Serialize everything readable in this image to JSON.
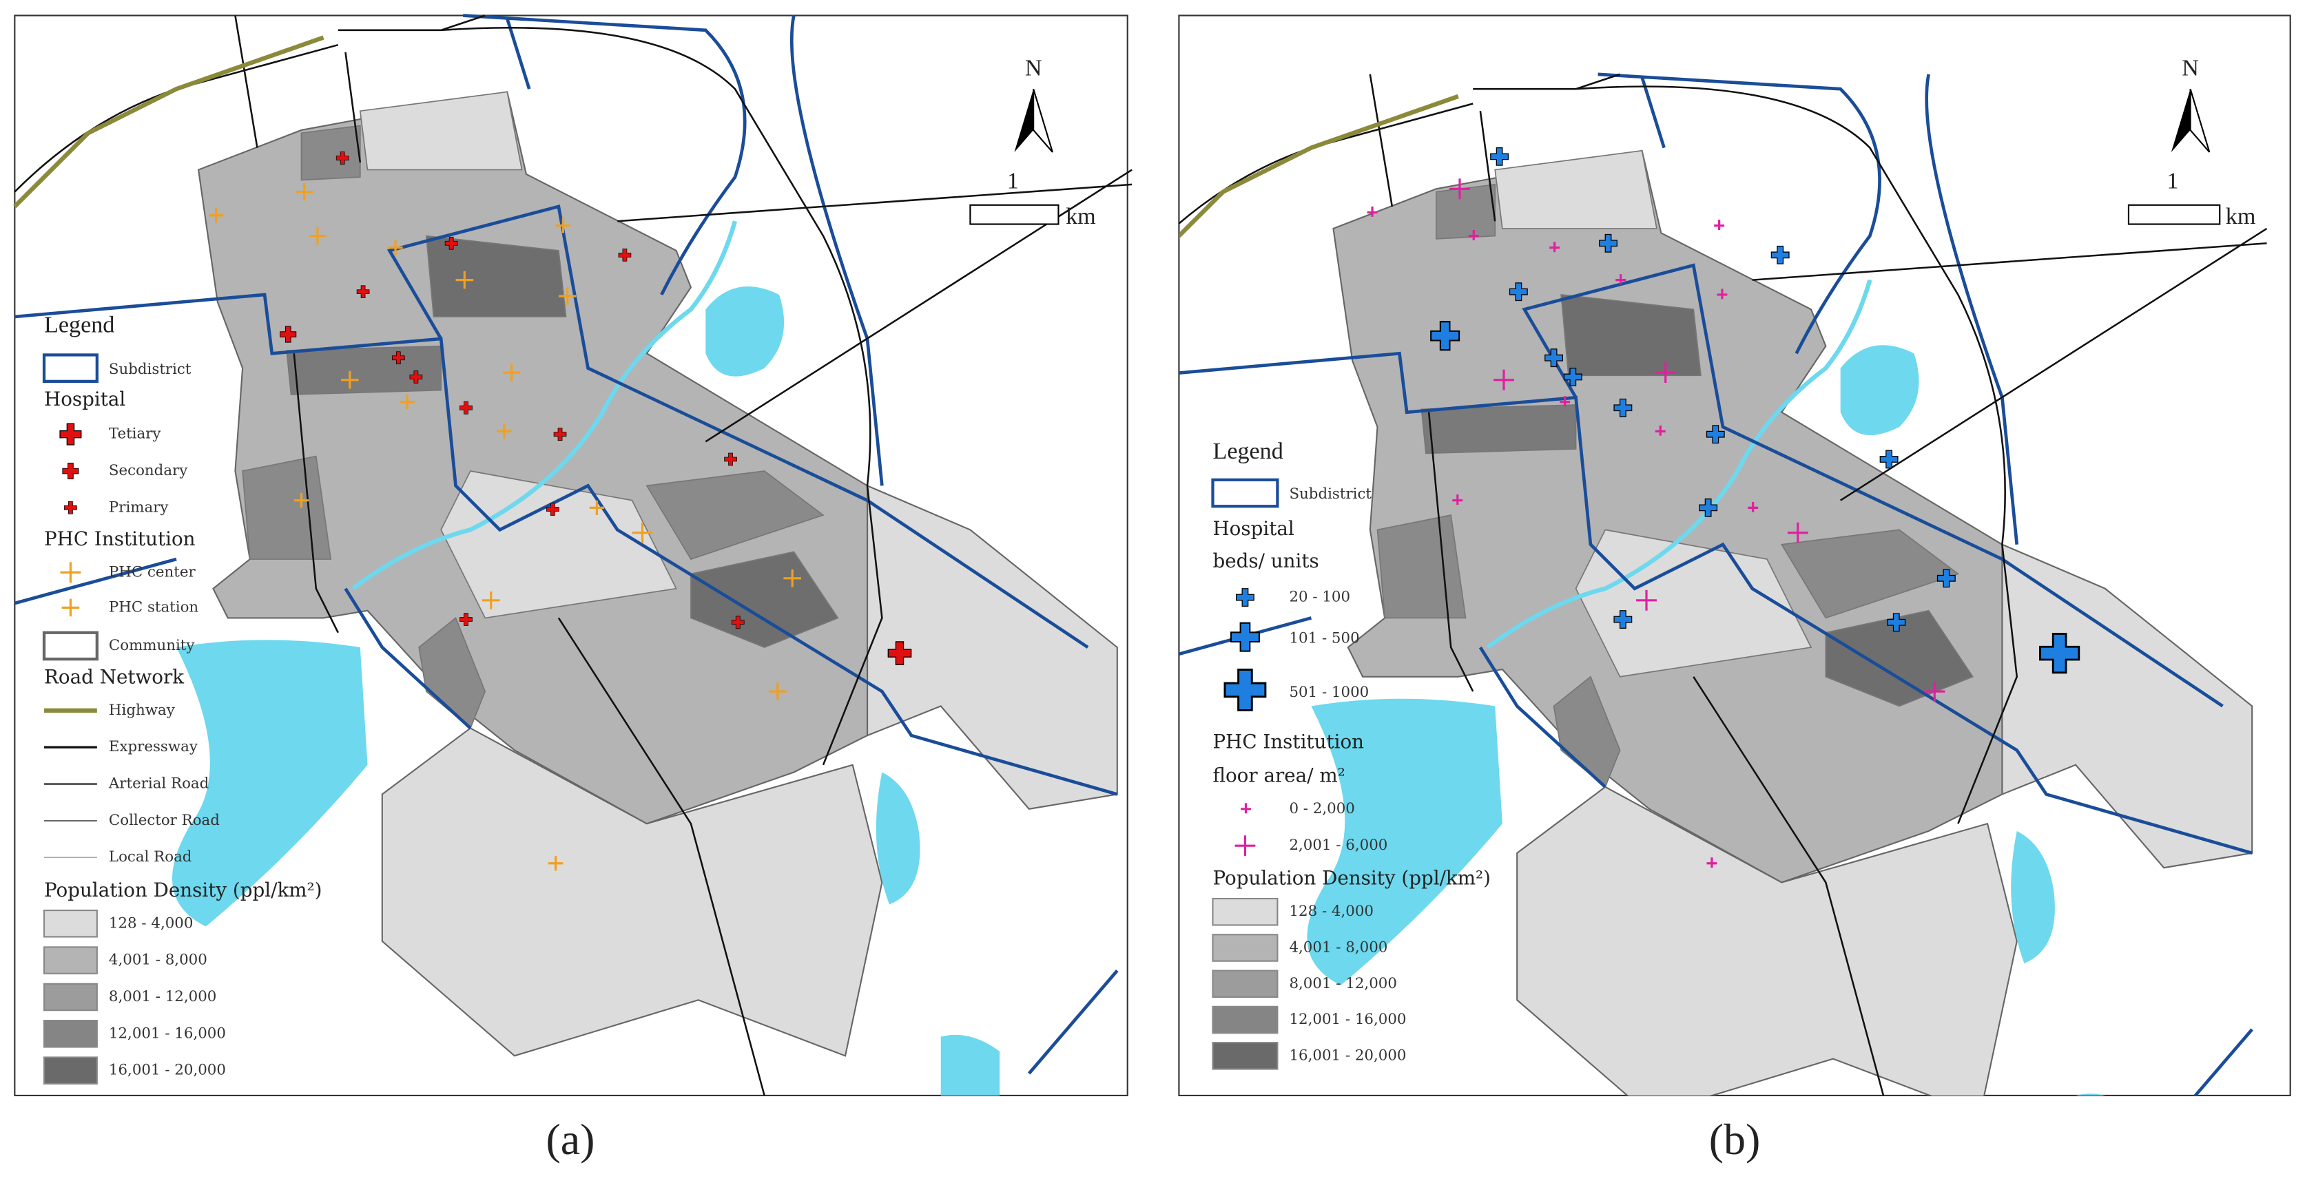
{
  "panels": [
    {
      "caption": "(a)",
      "north": "N",
      "scale_value": "1",
      "scale_unit": "km",
      "legend": {
        "title": "Legend",
        "subdistrict": "Subdistrict",
        "hospital": {
          "title": "Hospital",
          "items": [
            "Tetiary",
            "Secondary",
            "Primary"
          ]
        },
        "phc": {
          "title": "PHC Institution",
          "items": [
            "PHC center",
            "PHC station"
          ]
        },
        "community": "Community",
        "roads": {
          "title": "Road Network",
          "items": [
            "Highway",
            "Expressway",
            "Arterial Road",
            "Collector Road",
            "Local Road"
          ]
        },
        "density": {
          "title": "Population Density (ppl/km²)",
          "classes": [
            "128 - 4,000",
            "4,001 - 8,000",
            "8,001 - 12,000",
            "12,001 - 16,000",
            "16,001 - 20,000"
          ]
        }
      }
    },
    {
      "caption": "(b)",
      "north": "N",
      "scale_value": "1",
      "scale_unit": "km",
      "legend": {
        "title": "Legend",
        "subdistrict": "Subdistrict",
        "hospital": {
          "title": "Hospital",
          "subtitle": "beds/ units",
          "items": [
            "20 - 100",
            "101 - 500",
            "501 - 1000"
          ]
        },
        "phc": {
          "title": "PHC Institution",
          "subtitle": "floor area/ m²",
          "items": [
            "0 - 2,000",
            "2,001 - 6,000"
          ]
        },
        "density": {
          "title": "Population Density (ppl/km²)",
          "classes": [
            "128 - 4,000",
            "4,001 - 8,000",
            "8,001 - 12,000",
            "12,001 - 16,000",
            "16,001 - 20,000"
          ]
        }
      }
    }
  ]
}
